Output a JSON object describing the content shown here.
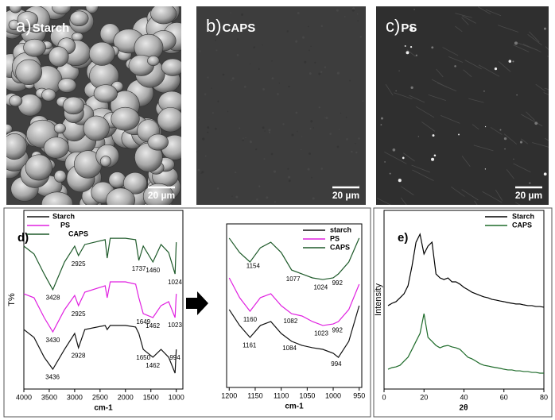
{
  "images": [
    {
      "label": "a)",
      "name": "Starch",
      "scale_bar": "20 µm"
    },
    {
      "label": "b)",
      "name": "CAPS",
      "scale_bar": "20 µm"
    },
    {
      "label": "c)",
      "name": "PS",
      "scale_bar": "20 µm"
    }
  ],
  "chart_data": [
    {
      "type": "line",
      "title": "d)",
      "xlabel": "cm-1",
      "ylabel": "T%",
      "legend": "upper left",
      "xlim": [
        4000,
        870
      ],
      "ylim": [
        0,
        100
      ],
      "xticks": [
        4000,
        3500,
        3000,
        2500,
        2000,
        1500,
        1000
      ],
      "x": [
        4000,
        3800,
        3600,
        3430,
        3200,
        3000,
        2925,
        2800,
        2400,
        2360,
        2300,
        2000,
        1800,
        1737,
        1650,
        1460,
        1300,
        1150,
        1024,
        1000
      ],
      "series": [
        {
          "name": "Starch",
          "color": "#111111",
          "values": [
            33.3,
            28.9,
            17.8,
            11.1,
            22.2,
            31.1,
            23.1,
            33.3,
            35.6,
            33.3,
            35.6,
            35.6,
            34.7,
            31.1,
            22.2,
            17.8,
            22.2,
            17.8,
            8.9,
            22.2
          ],
          "peaks": [
            3436,
            2928,
            1650,
            1462,
            994
          ]
        },
        {
          "name": "PS",
          "color": "#e020e0",
          "values": [
            53.3,
            51.1,
            40,
            32,
            44.4,
            52.4,
            46.7,
            54.2,
            57.8,
            51.1,
            60,
            60,
            58.7,
            51.1,
            42.2,
            40,
            46.7,
            48.9,
            40,
            53.3
          ],
          "peaks": [
            3430,
            2925,
            1649,
            1462,
            1023
          ]
        },
        {
          "name": "CAPS",
          "color": "#1e5a2a",
          "values": [
            80,
            75.6,
            64.4,
            55.6,
            71.1,
            80,
            74.7,
            80.9,
            83.6,
            73.3,
            84.4,
            84.4,
            83.6,
            72,
            80,
            71.1,
            80.9,
            76.4,
            64.4,
            82.2
          ],
          "peaks": [
            3428,
            2925,
            1737,
            1460,
            1024
          ]
        }
      ]
    },
    {
      "type": "line",
      "xlabel": "cm-1",
      "legend": "upper right",
      "xlim": [
        1205,
        945
      ],
      "ylim": [
        0,
        100
      ],
      "xticks": [
        1200,
        1150,
        1100,
        1050,
        1000,
        950
      ],
      "x": [
        1200,
        1180,
        1160,
        1140,
        1120,
        1100,
        1080,
        1060,
        1040,
        1020,
        1000,
        990,
        970,
        950
      ],
      "series": [
        {
          "name": "starch",
          "color": "#111111",
          "values": [
            47.6,
            37.9,
            30.6,
            37.9,
            40.3,
            33,
            28.2,
            25.7,
            24.3,
            23.3,
            20.9,
            18.4,
            28.2,
            50
          ],
          "peaks": [
            1161,
            1084,
            994
          ]
        },
        {
          "name": "PS",
          "color": "#e020e0",
          "values": [
            67,
            54.9,
            46.6,
            54.9,
            57.3,
            50,
            45.1,
            43.7,
            40.3,
            37.9,
            38.8,
            40.3,
            47.6,
            63.1
          ],
          "peaks": [
            1160,
            1082,
            1023,
            992
          ]
        },
        {
          "name": "CAPS",
          "color": "#1e5a2a",
          "values": [
            91.3,
            82.5,
            76.7,
            85.4,
            88.8,
            82.5,
            71.8,
            69.4,
            67,
            66,
            67,
            69.4,
            76.7,
            91.3
          ],
          "peaks": [
            1154,
            1077,
            1024,
            992
          ]
        }
      ]
    },
    {
      "type": "line",
      "title": "e)",
      "xlabel": "2θ",
      "ylabel": "Intensity",
      "legend": "upper right",
      "xlim": [
        0,
        80
      ],
      "ylim": [
        0,
        100
      ],
      "xticks": [
        0,
        20,
        40,
        60,
        80
      ],
      "x": [
        2,
        4,
        6,
        8,
        10,
        12,
        14,
        16,
        18,
        20,
        22,
        24,
        26,
        28,
        30,
        32,
        34,
        36,
        38,
        40,
        42,
        44,
        46,
        48,
        50,
        52,
        54,
        56,
        58,
        60,
        62,
        64,
        66,
        68,
        70,
        72,
        74,
        76,
        78,
        80
      ],
      "series": [
        {
          "name": "Starch",
          "color": "#000000",
          "values": [
            46.7,
            48,
            48.9,
            51.1,
            53.3,
            57.8,
            68.9,
            82.2,
            86.7,
            75.6,
            80,
            82.2,
            64.4,
            62.2,
            61.3,
            62.2,
            60,
            60,
            58.7,
            56.9,
            55.6,
            54.2,
            53.3,
            52.4,
            51.6,
            51.1,
            50.2,
            49.8,
            49.3,
            48.9,
            48.4,
            48,
            47.6,
            47.6,
            47.1,
            46.7,
            46.7,
            46.2,
            46.2,
            45.8
          ]
        },
        {
          "name": "CAPS",
          "color": "#1e6b2a",
          "values": [
            11.1,
            12,
            12.4,
            13.3,
            15.6,
            17.8,
            22.2,
            26.7,
            31.1,
            42.2,
            28.9,
            26.7,
            24.4,
            23.1,
            24,
            24.4,
            23.6,
            23.1,
            22.2,
            20,
            17.8,
            16.9,
            15.6,
            14.2,
            13.3,
            12.9,
            12.4,
            12,
            11.6,
            11.1,
            10.7,
            10.7,
            10.2,
            10.2,
            9.8,
            9.8,
            9.3,
            9.3,
            8.9,
            8.9
          ]
        }
      ]
    }
  ]
}
